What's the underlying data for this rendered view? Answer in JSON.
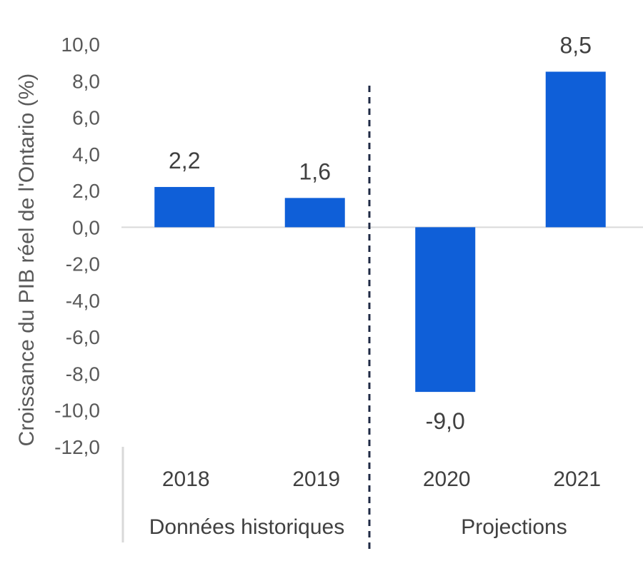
{
  "chart_data": {
    "type": "bar",
    "categories": [
      "2018",
      "2019",
      "2020",
      "2021"
    ],
    "values": [
      2.2,
      1.6,
      -9.0,
      8.5
    ],
    "data_labels": [
      "2,2",
      "1,6",
      "-9,0",
      "8,5"
    ],
    "ylabel": "Croissance du PIB réel de l'Ontario (%)",
    "ylim": [
      -12,
      10
    ],
    "yticks": [
      10,
      8,
      6,
      4,
      2,
      0,
      -2,
      -4,
      -6,
      -8,
      -10,
      -12
    ],
    "ytick_labels": [
      "10,0",
      "8,0",
      "6,0",
      "4,0",
      "2,0",
      "0,0",
      "-2,0",
      "-4,0",
      "-6,0",
      "-8,0",
      "-10,0",
      "-12,0"
    ],
    "groups": [
      {
        "label": "Données historiques",
        "categories": [
          "2018",
          "2019"
        ]
      },
      {
        "label": "Projections",
        "categories": [
          "2020",
          "2021"
        ]
      }
    ],
    "divider": "dashed line between 2019 and 2020",
    "grid": false,
    "legend": "none",
    "bar_color": "#0F5FD8",
    "divider_color": "#1F2A44",
    "axis_color": "#D9D9D9"
  }
}
